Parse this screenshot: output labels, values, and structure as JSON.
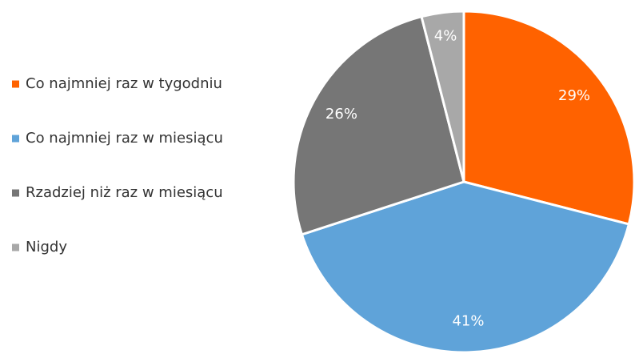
{
  "chart_data": {
    "type": "pie",
    "categories": [
      "Co najmniej raz w tygodniu",
      "Co najmniej raz w miesiącu",
      "Rzadziej niż raz w miesiącu",
      "Nigdy"
    ],
    "values": [
      29,
      41,
      26,
      4
    ],
    "value_labels": [
      "29%",
      "41%",
      "26%",
      "4%"
    ],
    "colors": [
      "#ff6200",
      "#5fa3d9",
      "#767676",
      "#a8a8a8"
    ],
    "legend": "left"
  }
}
